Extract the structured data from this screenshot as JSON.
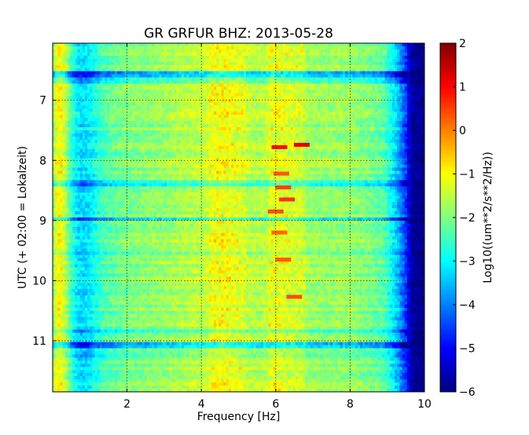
{
  "chart_data": {
    "type": "heatmap",
    "title": "GR GRFUR BHZ: 2013-05-28",
    "xlabel": "Frequency [Hz]",
    "ylabel": "UTC (+ 02:00 = Lokalzeit)",
    "xlim": [
      0,
      10
    ],
    "ylim": [
      11.85,
      6.05
    ],
    "x_ticks": [
      2,
      4,
      6,
      8,
      10
    ],
    "x_tick_labels": [
      "2",
      "4",
      "6",
      "8",
      "10"
    ],
    "y_ticks": [
      7,
      8,
      9,
      10,
      11
    ],
    "y_tick_labels": [
      "7",
      "8",
      "9",
      "10",
      "11"
    ],
    "y_axis_inverted": true,
    "grid": true,
    "colormap": "jet",
    "colorbar": {
      "label": "Log10((um**2/s**2/Hz))",
      "range": [
        -6,
        2
      ],
      "ticks": [
        2,
        1,
        0,
        -1,
        -2,
        -3,
        -4,
        -5,
        -6
      ],
      "tick_labels": [
        "2",
        "1",
        "0",
        "−1",
        "−2",
        "−3",
        "−4",
        "−5",
        "−6"
      ]
    },
    "frequency_profile": {
      "frequencies_hz": [
        0.0,
        0.1,
        0.2,
        0.3,
        0.45,
        0.6,
        0.8,
        1.0,
        1.3,
        1.6,
        2.0,
        2.5,
        3.0,
        3.5,
        4.0,
        4.3,
        4.6,
        5.0,
        5.5,
        6.0,
        6.5,
        7.0,
        7.5,
        8.0,
        8.5,
        8.9,
        9.1,
        9.3,
        9.5,
        9.6,
        9.7,
        10.0
      ],
      "log10_psd": [
        -2.0,
        -1.1,
        -1.0,
        -1.3,
        -2.2,
        -3.0,
        -3.3,
        -3.1,
        -2.5,
        -2.2,
        -2.0,
        -1.9,
        -1.8,
        -1.6,
        -1.5,
        -1.3,
        -1.2,
        -1.4,
        -1.6,
        -1.4,
        -1.6,
        -1.8,
        -1.8,
        -1.8,
        -2.0,
        -2.3,
        -2.9,
        -3.6,
        -4.6,
        -5.4,
        -5.8,
        -6.0
      ]
    },
    "band_strong_hz": [
      4.2,
      5.2
    ],
    "band_peak_hz": [
      5.8,
      6.8
    ],
    "quiet_rows_utc": [
      {
        "time": 6.58,
        "offset": -1.8
      },
      {
        "time": 6.68,
        "offset": -0.7
      },
      {
        "time": 8.38,
        "offset": -1.0
      },
      {
        "time": 8.97,
        "offset": -1.5
      },
      {
        "time": 9.55,
        "offset": -0.6
      },
      {
        "time": 10.85,
        "offset": -0.8
      },
      {
        "time": 11.07,
        "offset": -1.7
      },
      {
        "time": 11.24,
        "offset": -0.6
      }
    ],
    "hotspots": [
      {
        "hz": 6.1,
        "time": 7.78,
        "log10_psd": 0.9
      },
      {
        "hz": 6.7,
        "time": 7.74,
        "log10_psd": 1.2
      },
      {
        "hz": 6.15,
        "time": 8.22,
        "log10_psd": 0.3
      },
      {
        "hz": 6.2,
        "time": 8.45,
        "log10_psd": 0.5
      },
      {
        "hz": 6.3,
        "time": 8.65,
        "log10_psd": 0.6
      },
      {
        "hz": 6.0,
        "time": 8.85,
        "log10_psd": 0.4
      },
      {
        "hz": 6.1,
        "time": 9.2,
        "log10_psd": 0.2
      },
      {
        "hz": 6.2,
        "time": 9.65,
        "log10_psd": 0.3
      },
      {
        "hz": 6.5,
        "time": 10.27,
        "log10_psd": 0.4
      }
    ]
  }
}
